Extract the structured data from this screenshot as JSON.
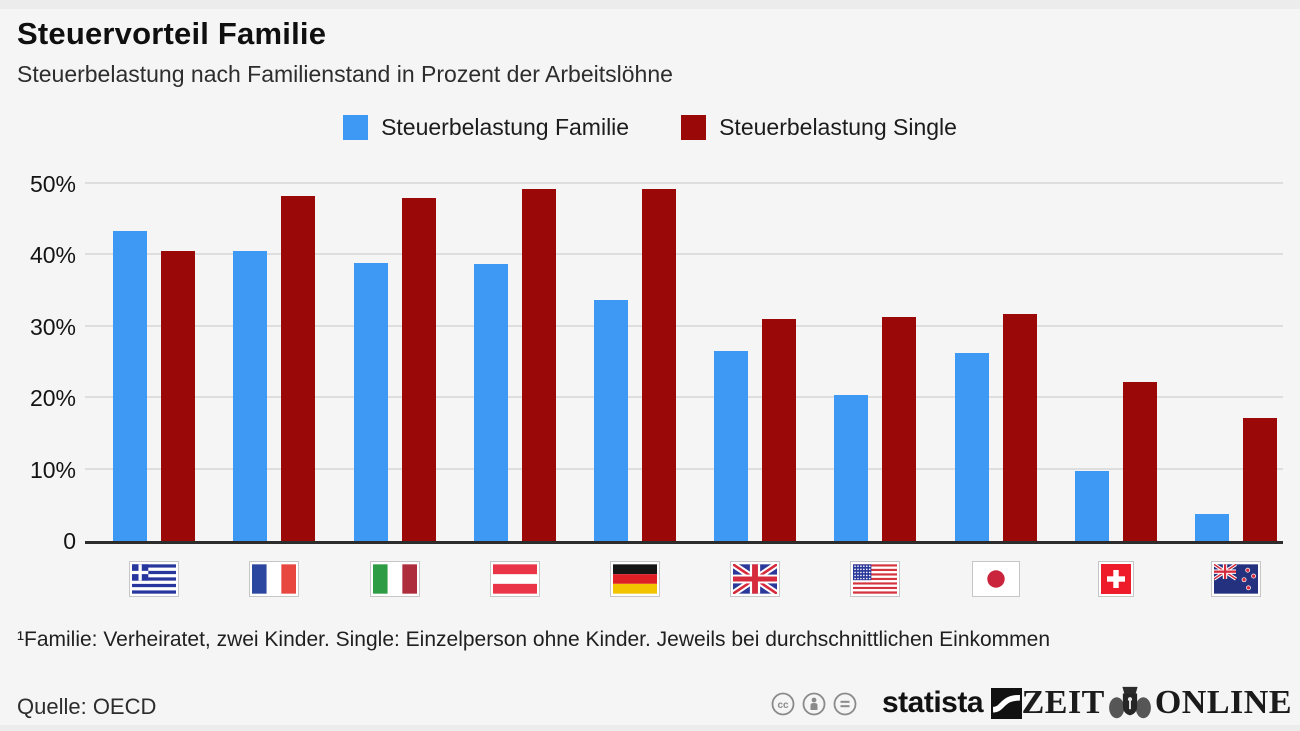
{
  "header": {
    "title": "Steuervorteil Familie",
    "subtitle": "Steuerbelastung nach Familienstand in Prozent der Arbeitslöhne"
  },
  "chart_data": {
    "type": "bar",
    "title": "Steuervorteil Familie",
    "subtitle": "Steuerbelastung nach Familienstand in Prozent der Arbeitslöhne",
    "unit": "percent of labour cost",
    "categories": [
      "Griechenland",
      "Frankreich",
      "Italien",
      "Österreich",
      "Deutschland",
      "Großbritannien",
      "USA",
      "Japan",
      "Schweiz",
      "Neuseeland"
    ],
    "category_flags": [
      "flag-greece",
      "flag-france",
      "flag-italy",
      "flag-austria",
      "flag-germany",
      "flag-uk",
      "flag-usa",
      "flag-japan",
      "flag-switzerland",
      "flag-new-zealand"
    ],
    "series": [
      {
        "name": "Steuerbelastung Familie",
        "color": "#3d99f4",
        "values": [
          43.3,
          40.5,
          38.9,
          38.8,
          33.7,
          26.6,
          20.4,
          26.3,
          9.8,
          3.8
        ]
      },
      {
        "name": "Steuerbelastung Single",
        "color": "#9a0808",
        "values": [
          40.5,
          48.2,
          48.0,
          49.3,
          49.2,
          31.0,
          31.4,
          31.8,
          22.3,
          17.2
        ]
      }
    ],
    "yticks": [
      {
        "value": 0,
        "label": "0"
      },
      {
        "value": 10,
        "label": "10%"
      },
      {
        "value": 20,
        "label": "20%"
      },
      {
        "value": 30,
        "label": "30%"
      },
      {
        "value": 40,
        "label": "40%"
      },
      {
        "value": 50,
        "label": "50%"
      }
    ],
    "ylim": [
      0,
      52
    ],
    "grid": true,
    "legend_position": "top"
  },
  "footnote": "¹Familie: Verheiratet, zwei Kinder. Single: Einzelperson ohne Kinder. Jeweils bei durchschnittlichen Einkommen",
  "footer": {
    "source": "Quelle: OECD",
    "license_icons": [
      "cc-icon",
      "attribution-icon",
      "no-derivatives-icon"
    ],
    "statista_wordmark": "statista",
    "zeit_wordmark": "ZEIT",
    "online_wordmark": "ONLINE"
  },
  "colors": {
    "background": "#f5f5f5",
    "gridline": "#dedede",
    "axis": "#2c2c2c",
    "family_bar": "#3d99f4",
    "single_bar": "#9a0808"
  }
}
